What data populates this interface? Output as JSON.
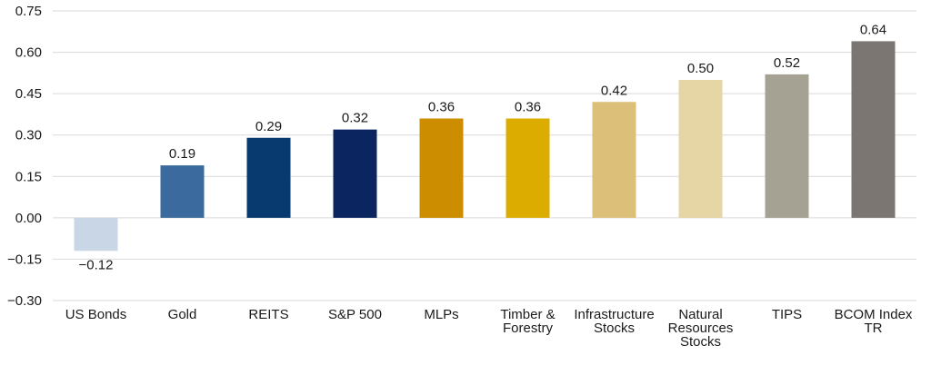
{
  "chart_data": {
    "type": "bar",
    "categories": [
      "US Bonds",
      "Gold",
      "REITS",
      "S&P 500",
      "MLPs",
      "Timber & Forestry",
      "Infrastructure Stocks",
      "Natural Resources Stocks",
      "TIPS",
      "BCOM Index TR"
    ],
    "category_lines": [
      [
        "US Bonds"
      ],
      [
        "Gold"
      ],
      [
        "REITS"
      ],
      [
        "S&P 500"
      ],
      [
        "MLPs"
      ],
      [
        "Timber &",
        "Forestry"
      ],
      [
        "Infrastructure",
        "Stocks"
      ],
      [
        "Natural",
        "Resources",
        "Stocks"
      ],
      [
        "TIPS"
      ],
      [
        "BCOM Index",
        "TR"
      ]
    ],
    "values": [
      -0.12,
      0.19,
      0.29,
      0.32,
      0.36,
      0.36,
      0.42,
      0.5,
      0.52,
      0.64
    ],
    "value_labels": [
      "−0.12",
      "0.19",
      "0.29",
      "0.32",
      "0.36",
      "0.36",
      "0.42",
      "0.50",
      "0.52",
      "0.64"
    ],
    "colors": [
      "#c9d6e6",
      "#3a6a9e",
      "#083a6f",
      "#0b2561",
      "#cc8d00",
      "#ddac00",
      "#dcc07a",
      "#e6d6a6",
      "#a5a193",
      "#7b7672"
    ],
    "ylim": [
      -0.3,
      0.75
    ],
    "yticks": [
      0.75,
      0.6,
      0.45,
      0.3,
      0.15,
      0.0,
      -0.15,
      -0.3
    ],
    "ytick_labels": [
      "0.75",
      "0.60",
      "0.45",
      "0.30",
      "0.15",
      "0.00",
      "−0.15",
      "−0.30"
    ],
    "title": "",
    "xlabel": "",
    "ylabel": "",
    "grid": true,
    "legend": "none"
  }
}
